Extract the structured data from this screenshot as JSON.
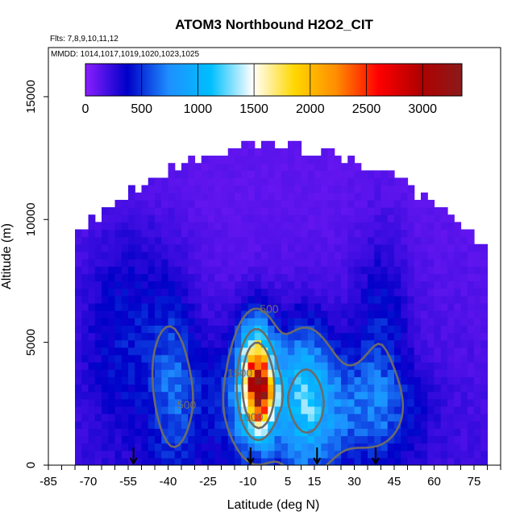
{
  "chart_data": {
    "type": "heatmap",
    "title": "ATOM3 Northbound H2O2_CIT",
    "subtitle_flights": "Flts: 7,8,9,10,11,12",
    "subtitle_dates": "MMDD: 1014,1017,1019,1020,1023,1025",
    "xlabel": "Latitude (deg N)",
    "ylabel": "Altitude (m)",
    "xlim": [
      -85,
      85
    ],
    "ylim": [
      0,
      17000
    ],
    "x_ticks": [
      -85,
      -70,
      -55,
      -40,
      -25,
      -10,
      5,
      15,
      30,
      45,
      60,
      75
    ],
    "x_tick_labels": [
      "-85",
      "-70",
      "-55",
      "-40",
      "-25",
      "-10",
      "5",
      "15",
      "30",
      "45",
      "60",
      "75"
    ],
    "y_ticks": [
      0,
      5000,
      10000,
      15000
    ],
    "y_tick_labels": [
      "0",
      "5000",
      "10000",
      "15000"
    ],
    "colorbar": {
      "range": [
        0,
        3350
      ],
      "ticks": [
        0,
        500,
        1000,
        1500,
        2000,
        2500,
        3000
      ],
      "tick_labels": [
        "0",
        "500",
        "1000",
        "1500",
        "2000",
        "2500",
        "3000"
      ],
      "colors": [
        "#8b1eff",
        "#0000c8",
        "#1e90ff",
        "#00bfff",
        "#ffffff",
        "#ffd700",
        "#ff8c00",
        "#ff0000",
        "#b00000",
        "#8b1a1a"
      ]
    },
    "contour_levels": [
      500,
      1000,
      1500
    ],
    "contour_labels": [
      {
        "text": "500",
        "x": -2,
        "y": 6200
      },
      {
        "text": "1500",
        "x": -13,
        "y": 3600
      },
      {
        "text": "1000",
        "x": -9,
        "y": 1800
      },
      {
        "text": "500",
        "x": -33,
        "y": 2300
      }
    ],
    "flight_arrow_latitudes": [
      -53,
      -9,
      16,
      38
    ],
    "grid": false,
    "legend": "colorbar-top"
  }
}
